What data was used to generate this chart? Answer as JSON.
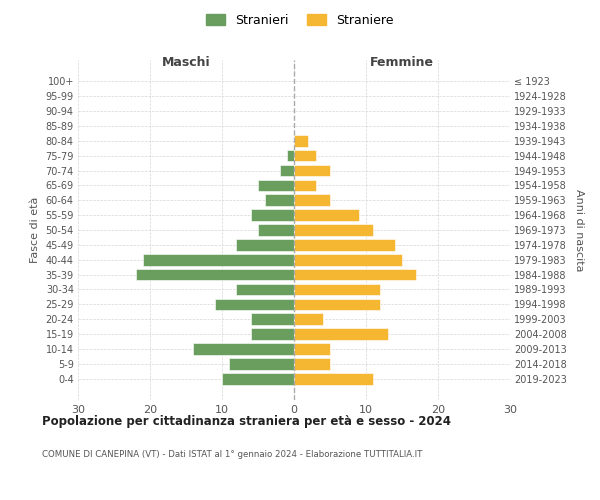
{
  "age_groups": [
    "0-4",
    "5-9",
    "10-14",
    "15-19",
    "20-24",
    "25-29",
    "30-34",
    "35-39",
    "40-44",
    "45-49",
    "50-54",
    "55-59",
    "60-64",
    "65-69",
    "70-74",
    "75-79",
    "80-84",
    "85-89",
    "90-94",
    "95-99",
    "100+"
  ],
  "birth_years": [
    "2019-2023",
    "2014-2018",
    "2009-2013",
    "2004-2008",
    "1999-2003",
    "1994-1998",
    "1989-1993",
    "1984-1988",
    "1979-1983",
    "1974-1978",
    "1969-1973",
    "1964-1968",
    "1959-1963",
    "1954-1958",
    "1949-1953",
    "1944-1948",
    "1939-1943",
    "1934-1938",
    "1929-1933",
    "1924-1928",
    "≤ 1923"
  ],
  "maschi": [
    10,
    9,
    14,
    6,
    6,
    11,
    8,
    22,
    21,
    8,
    5,
    6,
    4,
    5,
    2,
    1,
    0,
    0,
    0,
    0,
    0
  ],
  "femmine": [
    11,
    5,
    5,
    13,
    4,
    12,
    12,
    17,
    15,
    14,
    11,
    9,
    5,
    3,
    5,
    3,
    2,
    0,
    0,
    0,
    0
  ],
  "male_color": "#6a9e5e",
  "female_color": "#f5b731",
  "title": "Popolazione per cittadinanza straniera per età e sesso - 2024",
  "subtitle": "COMUNE DI CANEPINA (VT) - Dati ISTAT al 1° gennaio 2024 - Elaborazione TUTTITALIA.IT",
  "xlabel_left": "Maschi",
  "xlabel_right": "Femmine",
  "ylabel_left": "Fasce di età",
  "ylabel_right": "Anni di nascita",
  "legend_male": "Stranieri",
  "legend_female": "Straniere",
  "xlim": 30,
  "background_color": "#ffffff",
  "grid_color": "#cccccc",
  "dashed_line_color": "#aaaaaa"
}
